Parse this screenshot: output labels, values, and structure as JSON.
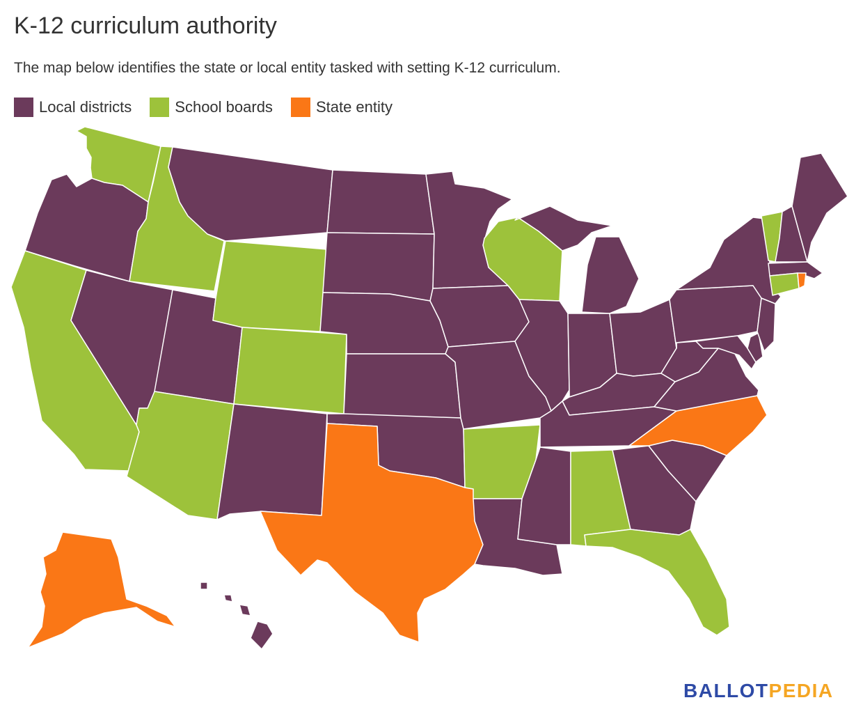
{
  "title": "K-12 curriculum authority",
  "subtitle": "The map below identifies the state or local entity tasked with setting K-12 curriculum.",
  "legend": [
    {
      "label": "Local districts",
      "color": "#6b3a5b"
    },
    {
      "label": "School boards",
      "color": "#9dc23b"
    },
    {
      "label": "State entity",
      "color": "#fa7716"
    }
  ],
  "brand": {
    "part1": "BALLOT",
    "part2": "PEDIA"
  },
  "states": {
    "WA": "School boards",
    "OR": "Local districts",
    "CA": "School boards",
    "ID": "School boards",
    "NV": "Local districts",
    "UT": "Local districts",
    "AZ": "School boards",
    "MT": "Local districts",
    "WY": "School boards",
    "CO": "School boards",
    "NM": "Local districts",
    "ND": "Local districts",
    "SD": "Local districts",
    "NE": "Local districts",
    "KS": "Local districts",
    "OK": "Local districts",
    "TX": "State entity",
    "MN": "Local districts",
    "IA": "Local districts",
    "MO": "Local districts",
    "AR": "School boards",
    "LA": "Local districts",
    "WI": "School boards",
    "IL": "Local districts",
    "MI": "Local districts",
    "IN": "Local districts",
    "OH": "Local districts",
    "KY": "Local districts",
    "TN": "Local districts",
    "MS": "Local districts",
    "AL": "School boards",
    "GA": "Local districts",
    "FL": "School boards",
    "SC": "Local districts",
    "NC": "State entity",
    "VA": "Local districts",
    "WV": "Local districts",
    "MD": "Local districts",
    "DE": "Local districts",
    "PA": "Local districts",
    "NJ": "Local districts",
    "NY": "Local districts",
    "CT": "School boards",
    "RI": "State entity",
    "MA": "Local districts",
    "VT": "School boards",
    "NH": "Local districts",
    "ME": "Local districts",
    "AK": "State entity",
    "HI": "Local districts"
  }
}
